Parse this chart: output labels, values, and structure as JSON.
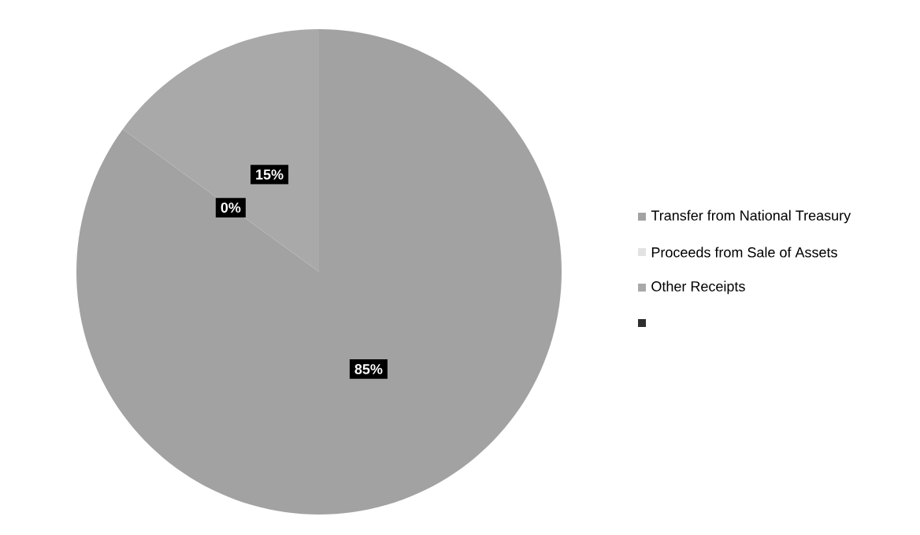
{
  "chart_data": {
    "type": "pie",
    "categories": [
      "Transfer from National Treasury",
      "Proceeds from Sale of Assets",
      "Other Receipts",
      null
    ],
    "values": [
      85,
      0,
      15,
      0
    ],
    "value_labels": [
      "85%",
      "0%",
      "15%",
      null
    ],
    "colors": [
      "#a2a2a2",
      "#e2e2e2",
      "#a9a9a9",
      "#2e2e2e"
    ],
    "legend": "right"
  }
}
